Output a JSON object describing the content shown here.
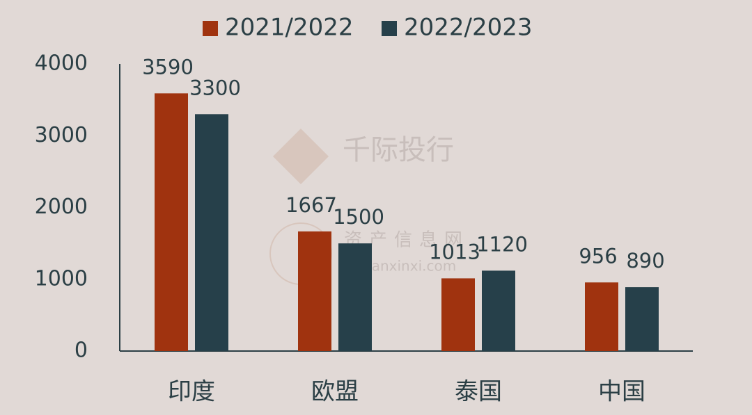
{
  "chart_data": {
    "type": "bar",
    "categories": [
      "印度",
      "欧盟",
      "泰国",
      "中国"
    ],
    "series": [
      {
        "name": "2021/2022",
        "color": "#a0330f",
        "values": [
          3590,
          1667,
          1013,
          956
        ]
      },
      {
        "name": "2022/2023",
        "color": "#26404a",
        "values": [
          3300,
          1500,
          1120,
          890
        ]
      }
    ],
    "ylim": [
      0,
      4000
    ],
    "yticks": [
      0,
      1000,
      2000,
      3000,
      4000
    ],
    "grid": false,
    "legend": "top",
    "watermarks": [
      "千际投行",
      "资产信息网",
      "zichanxinxi.com"
    ]
  }
}
